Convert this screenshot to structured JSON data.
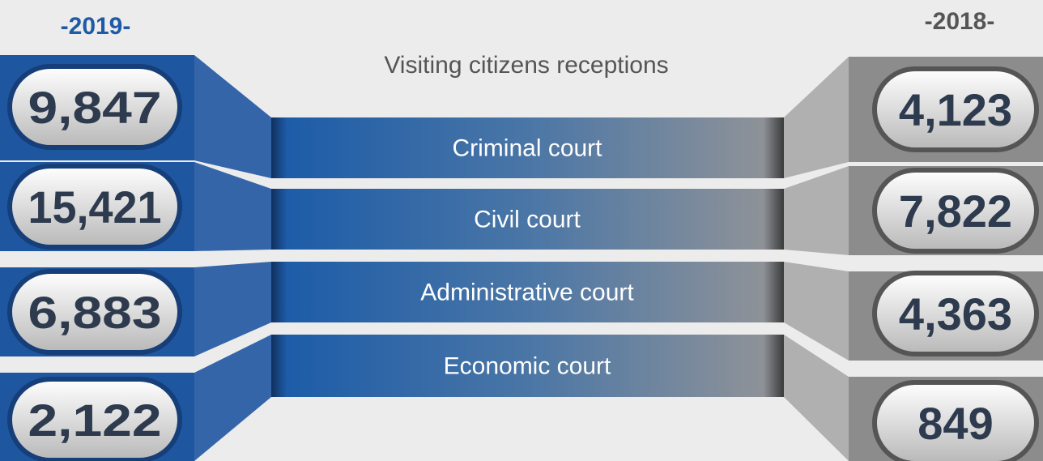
{
  "left_header": "-2019-",
  "right_header": "-2018-",
  "title": "Visiting citizens receptions",
  "rows": [
    {
      "label": "Criminal court",
      "left": "9,847",
      "right": "4,123"
    },
    {
      "label": "Civil court",
      "left": "15,421",
      "right": "7,822"
    },
    {
      "label": "Administrative court",
      "left": "6,883",
      "right": "4,363"
    },
    {
      "label": "Economic court",
      "left": "2,122",
      "right": "849"
    }
  ]
}
